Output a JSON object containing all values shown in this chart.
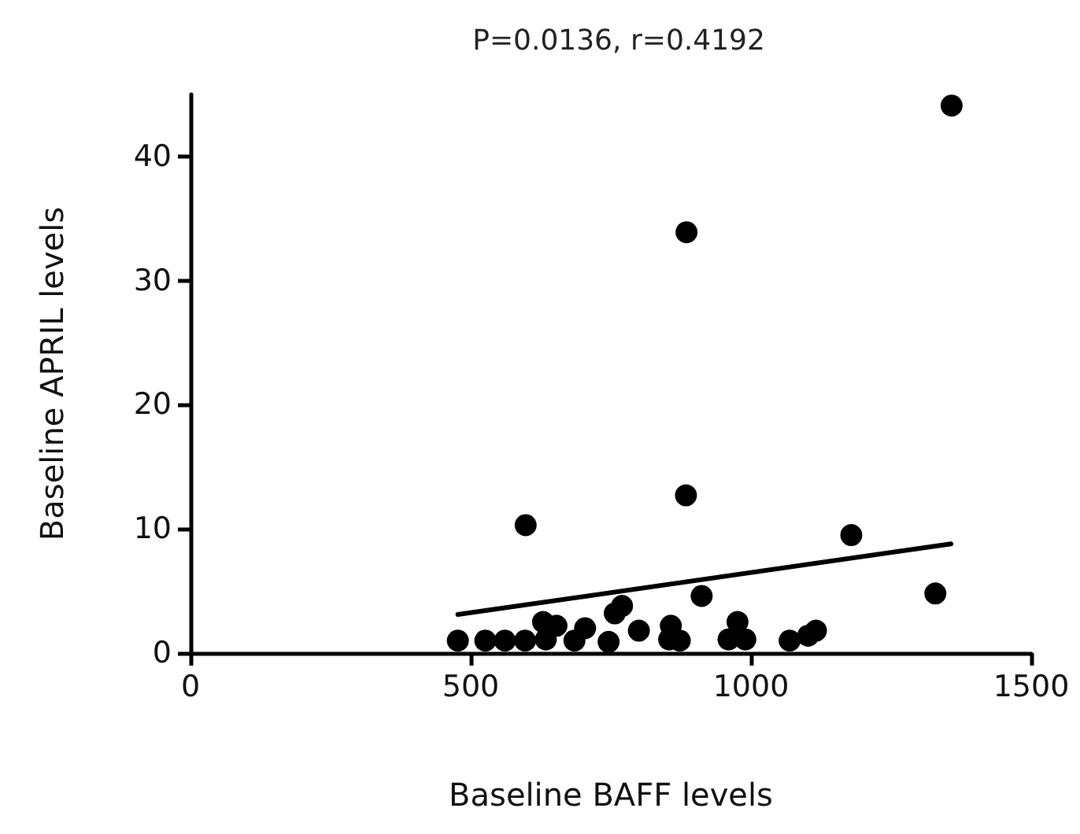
{
  "chart_data": {
    "type": "scatter",
    "title": "P=0.0136, r=0.4192",
    "xlabel": "Baseline BAFF levels",
    "ylabel": "Baseline APRIL levels",
    "xlim": [
      0,
      1500
    ],
    "xticks": [
      0,
      500,
      1000,
      1500
    ],
    "ylim": [
      0,
      45
    ],
    "yticks": [
      0,
      10,
      20,
      30,
      40
    ],
    "grid": false,
    "marker": "circle",
    "series": [
      {
        "color": "#000000",
        "x": [
          477,
          526,
          561,
          597,
          629,
          653,
          634,
          685,
          704,
          746,
          757,
          770,
          790,
          800,
          857,
          854,
          873,
          912,
          976,
          960,
          990,
          1069,
          1102,
          1116,
          598,
          884,
          1179,
          885,
          1358,
          1329
        ],
        "values": [
          1.0,
          1.0,
          1.0,
          1.0,
          2.5,
          2.2,
          1.1,
          1.0,
          2.0,
          0.9,
          3.2,
          3.8,
          null,
          1.8,
          2.2,
          1.1,
          1.0,
          4.6,
          2.5,
          1.1,
          1.1,
          1.0,
          1.4,
          1.8,
          10.3,
          12.7,
          9.5,
          33.9,
          44.1,
          4.8
        ]
      },
      {
        "type": "line",
        "color": "#000000",
        "marker": "none",
        "line_style": "solid",
        "x": [
          477,
          1357
        ],
        "values": [
          3.1,
          8.8
        ]
      }
    ]
  }
}
